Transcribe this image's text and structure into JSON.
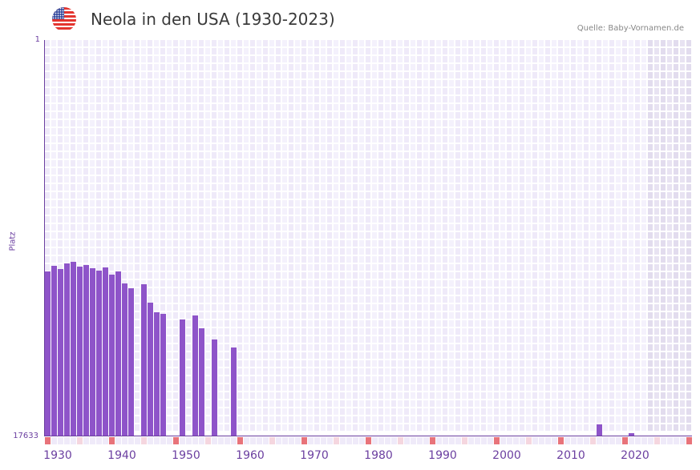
{
  "header": {
    "title": "Neola in den USA (1930-2023)",
    "source": "Quelle: Baby-Vornamen.de",
    "flag_icon": "us-flag-icon"
  },
  "colors": {
    "bar": "#8e54c9",
    "axis": "#6b3fa0",
    "grid_a": "#efeaf9",
    "grid_b": "#f4f1fc",
    "future_a": "#e2dcee",
    "future_b": "#e8e3f2",
    "decade_marker": "#e8737a",
    "half_decade_marker": "#f5d6df",
    "other_marker": "#efeaf9"
  },
  "chart_data": {
    "type": "bar",
    "title": "Neola in den USA (1930-2023)",
    "xlabel": "",
    "ylabel": "Platz",
    "y_axis_inverted": true,
    "ylim": [
      1,
      17633
    ],
    "y_ticks": [
      "1",
      "17633"
    ],
    "x_ticks": [
      "1930",
      "1940",
      "1950",
      "1960",
      "1970",
      "1980",
      "1990",
      "2000",
      "2010",
      "2020"
    ],
    "x_range": [
      1930,
      2030
    ],
    "future_shaded_from": 2024,
    "grid": true,
    "legend": null,
    "note": "Ranks estimated from bar heights (linear scale, rank 1 top, 17633 baseline). Years without a bar = not ranked.",
    "years": [
      1930,
      1931,
      1932,
      1933,
      1934,
      1935,
      1936,
      1937,
      1938,
      1939,
      1940,
      1941,
      1942,
      1943,
      1945,
      1946,
      1947,
      1948,
      1951,
      1953,
      1954,
      1956,
      1959,
      2016,
      2021
    ],
    "values": [
      10295,
      10046,
      10188,
      9939,
      9868,
      10082,
      10010,
      10153,
      10260,
      10117,
      10437,
      10295,
      10829,
      11043,
      10865,
      11684,
      12111,
      12182,
      12431,
      12253,
      12823,
      13322,
      13678,
      17099,
      17490
    ]
  },
  "axis": {
    "y_top_label": "1",
    "y_bottom_label": "17633",
    "y_title": "Platz",
    "x_labels": [
      "1930",
      "1940",
      "1950",
      "1960",
      "1970",
      "1980",
      "1990",
      "2000",
      "2010",
      "2020"
    ]
  }
}
